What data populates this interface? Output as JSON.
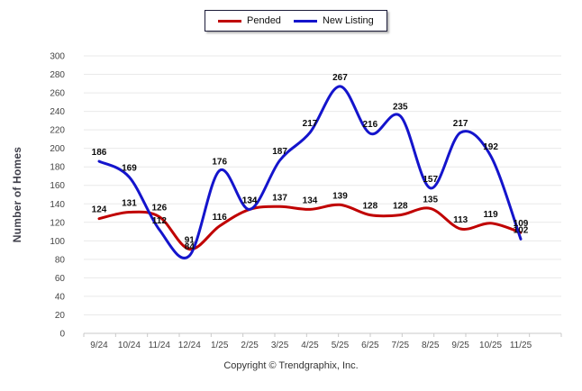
{
  "ylabel": "Number of Homes",
  "legend": {
    "items": [
      {
        "label": "Pended",
        "color": "#c00000"
      },
      {
        "label": "New Listing",
        "color": "#1414cc"
      }
    ]
  },
  "footer": {
    "copyright": "Copyright © Trendgraphix, Inc."
  },
  "chart_data": {
    "type": "line",
    "title": "",
    "xlabel": "",
    "ylabel": "Number of Homes",
    "categories": [
      "9/24",
      "10/24",
      "11/24",
      "12/24",
      "1/25",
      "2/25",
      "3/25",
      "4/25",
      "5/25",
      "6/25",
      "7/25",
      "8/25",
      "9/25",
      "10/25",
      "11/25"
    ],
    "series": [
      {
        "name": "Pended",
        "color": "#c00000",
        "values": [
          124,
          131,
          126,
          91,
          116,
          134,
          137,
          134,
          139,
          128,
          128,
          135,
          113,
          119,
          109
        ]
      },
      {
        "name": "New Listing",
        "color": "#1414cc",
        "values": [
          186,
          169,
          112,
          84,
          176,
          134,
          187,
          217,
          267,
          216,
          235,
          157,
          217,
          192,
          102
        ]
      }
    ],
    "ylim": [
      0,
      300
    ],
    "ytick_step": 20,
    "grid": true,
    "data_labels": true,
    "legend_position": "top-center"
  }
}
